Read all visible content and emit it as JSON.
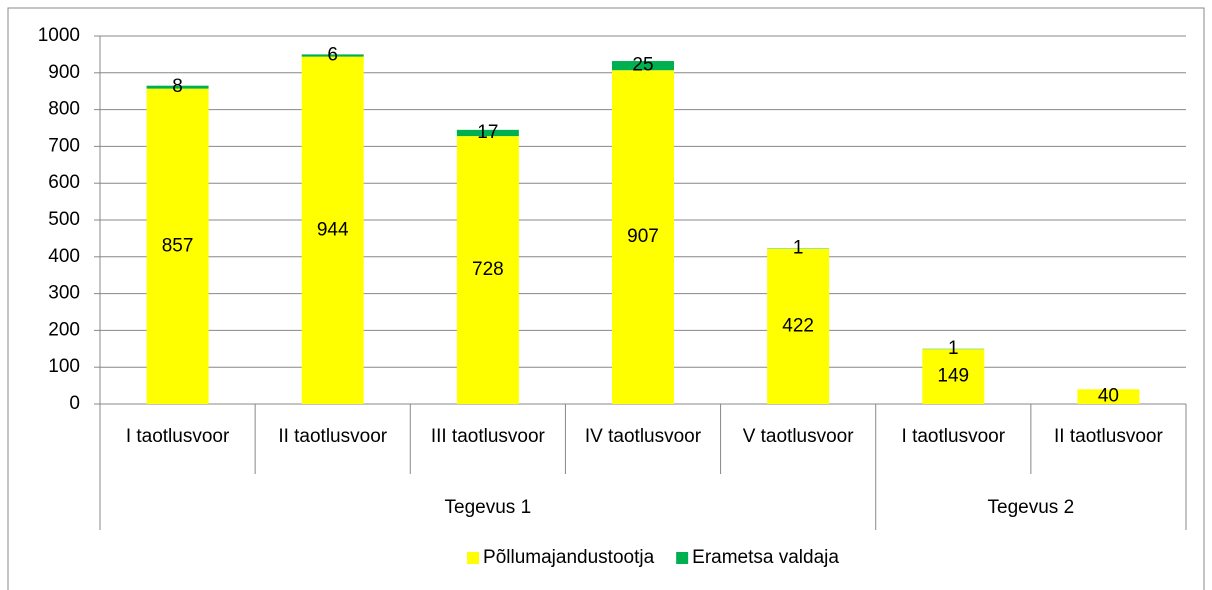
{
  "chart_data": {
    "type": "stacked-bar",
    "categories": [
      "I taotlusvoor",
      "II taotlusvoor",
      "III taotlusvoor",
      "IV taotlusvoor",
      "V taotlusvoor",
      "I taotlusvoor",
      "II taotlusvoor"
    ],
    "category_groups": [
      "Tegevus 1",
      "Tegevus 1",
      "Tegevus 1",
      "Tegevus 1",
      "Tegevus 1",
      "Tegevus 2",
      "Tegevus 2"
    ],
    "series": [
      {
        "name": "Põllumajandustootja",
        "color": "#ffff00",
        "values": [
          857,
          944,
          728,
          907,
          422,
          149,
          40
        ]
      },
      {
        "name": "Erametsa valdaja",
        "color": "#00b050",
        "values": [
          8,
          6,
          17,
          25,
          1,
          1,
          null
        ]
      }
    ],
    "ylim": [
      0,
      1000
    ],
    "yticks": [
      0,
      100,
      200,
      300,
      400,
      500,
      600,
      700,
      800,
      900,
      1000
    ],
    "grid": true,
    "legend": "bottom"
  }
}
